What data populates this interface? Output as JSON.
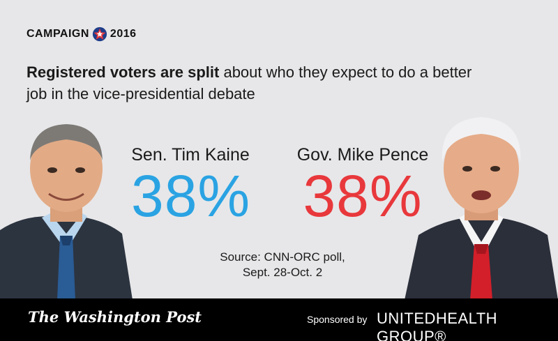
{
  "brand": {
    "left": "CAMPAIGN",
    "right": "2016",
    "star_icon": "star-icon"
  },
  "headline": {
    "bold": "Registered voters are split",
    "rest": " about who they expect to do a better job in the vice-presidential debate"
  },
  "candidates": [
    {
      "name": "Sen. Tim Kaine",
      "value": "38%",
      "color": "#2aa3e3"
    },
    {
      "name": "Gov. Mike Pence",
      "value": "38%",
      "color": "#e8383c"
    }
  ],
  "source": {
    "line1": "Source: CNN-ORC poll,",
    "line2": "Sept. 28-Oct. 2"
  },
  "footer": {
    "publisher": "The Washington Post",
    "sponsored_label": "Sponsored by",
    "sponsor": "UNITEDHEALTH GROUP®"
  }
}
